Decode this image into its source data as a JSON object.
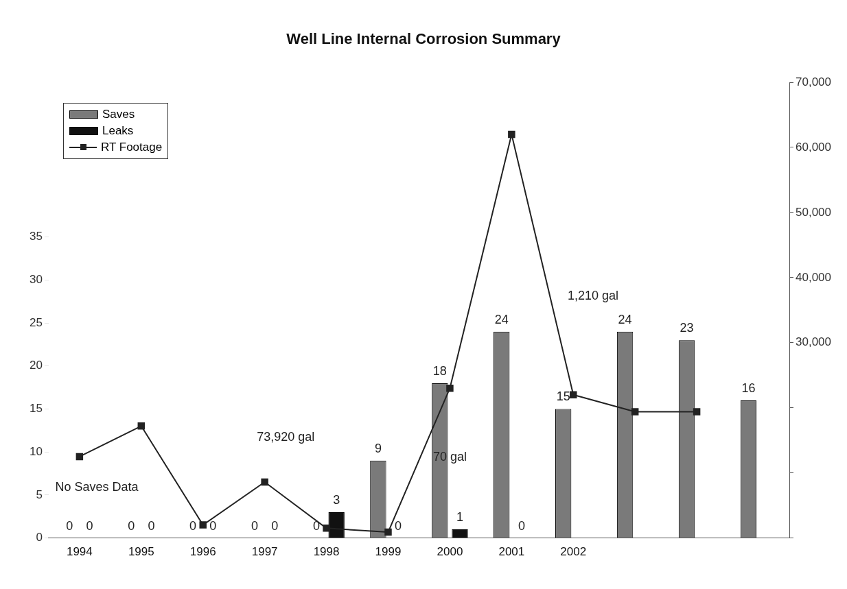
{
  "chart_data": {
    "type": "bar",
    "title": "Well Line Internal Corrosion Summary",
    "categories": [
      "1994",
      "1995",
      "1996",
      "1997",
      "1998",
      "1999",
      "2000",
      "2001",
      "2002",
      null,
      null,
      null
    ],
    "series": [
      {
        "name": "Saves",
        "color": "#7a7a7a",
        "values": [
          0,
          0,
          0,
          0,
          0,
          9,
          18,
          24,
          15,
          24,
          23,
          16
        ],
        "value_labels": [
          "0",
          "0",
          "0",
          "0",
          "0",
          "9",
          "18",
          "24",
          "15",
          "24",
          "23",
          "16"
        ]
      },
      {
        "name": "Leaks",
        "color": "#111111",
        "values": [
          0,
          0,
          0,
          0,
          3,
          0,
          1,
          0,
          null,
          null,
          null,
          null
        ],
        "value_labels": [
          "0",
          "0",
          "0",
          "0",
          "3",
          "0",
          "1",
          "0",
          null,
          null,
          null,
          null
        ]
      },
      {
        "name": "RT Footage",
        "type": "line",
        "axis": "y2",
        "color": "#222222",
        "marker": "square",
        "values": [
          12500,
          17200,
          2000,
          8600,
          1500,
          900,
          23000,
          62000,
          22000,
          19400,
          19400,
          null
        ]
      }
    ],
    "ylim": [
      0,
      53
    ],
    "yticks": [
      0,
      5,
      10,
      15,
      20,
      25,
      30,
      35
    ],
    "y2lim": [
      0,
      70000
    ],
    "y2ticks": [
      {
        "value": 0,
        "label": null
      },
      {
        "value": 10000,
        "label": null
      },
      {
        "value": 20000,
        "label": null
      },
      {
        "value": 30000,
        "label": "30,000"
      },
      {
        "value": 40000,
        "label": "40,000"
      },
      {
        "value": 50000,
        "label": "50,000"
      },
      {
        "value": 60000,
        "label": "60,000"
      },
      {
        "value": 70000,
        "label": "70,000"
      }
    ],
    "legend": "top left",
    "grid": false,
    "annotations": [
      "No Saves Data",
      "73,920 gal",
      {
        "text": "70 gal",
        "x": "2000",
        "y": 9.4
      },
      "1,210 gal"
    ]
  }
}
